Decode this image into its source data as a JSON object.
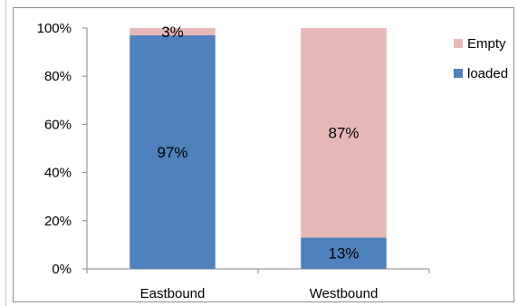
{
  "chart_data": {
    "type": "bar",
    "stacked": true,
    "percent_stacked": true,
    "categories": [
      "Eastbound",
      "Westbound"
    ],
    "series": [
      {
        "name": "loaded",
        "values": [
          97,
          13
        ],
        "labels": [
          "97%",
          "13%"
        ],
        "color": "#4f81bd"
      },
      {
        "name": "Empty",
        "values": [
          3,
          87
        ],
        "labels": [
          "3%",
          "87%"
        ],
        "color": "#e6b9b8"
      }
    ],
    "yticks": [
      "0%",
      "20%",
      "40%",
      "60%",
      "80%",
      "100%"
    ],
    "ylim": [
      0,
      100
    ],
    "grid": false,
    "legend": {
      "placement": "right",
      "order": [
        "Empty",
        "loaded"
      ]
    }
  }
}
